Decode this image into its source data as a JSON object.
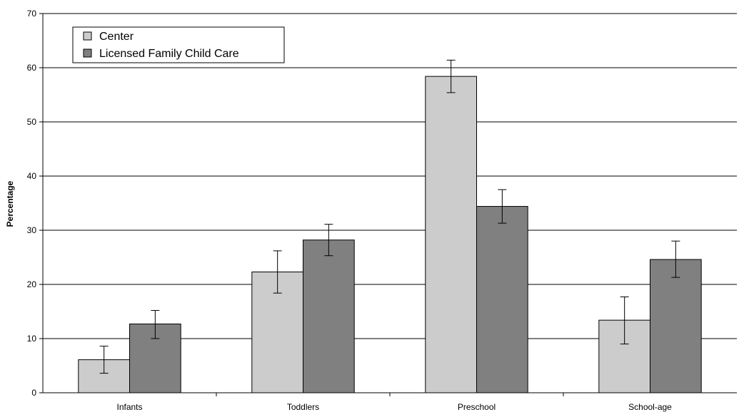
{
  "chart_data": {
    "type": "bar",
    "title": "",
    "xlabel": "",
    "ylabel": "Percentage",
    "ylim": [
      0,
      70
    ],
    "yticks": [
      0,
      10,
      20,
      30,
      40,
      50,
      60,
      70
    ],
    "grid": true,
    "legend_position": "top-left",
    "categories": [
      "Infants",
      "Toddlers",
      "Preschool",
      "School-age"
    ],
    "series": [
      {
        "name": "Center",
        "color": "#cccccc",
        "values": [
          6.1,
          22.3,
          58.4,
          13.4
        ],
        "error_low": [
          3.6,
          18.4,
          55.4,
          9.0
        ],
        "error_high": [
          8.6,
          26.2,
          61.4,
          17.7
        ]
      },
      {
        "name": "Licensed Family Child Care",
        "color": "#808080",
        "values": [
          12.7,
          28.2,
          34.4,
          24.6
        ],
        "error_low": [
          10.0,
          25.3,
          31.3,
          21.3
        ],
        "error_high": [
          15.2,
          31.1,
          37.5,
          28.0
        ]
      }
    ]
  }
}
